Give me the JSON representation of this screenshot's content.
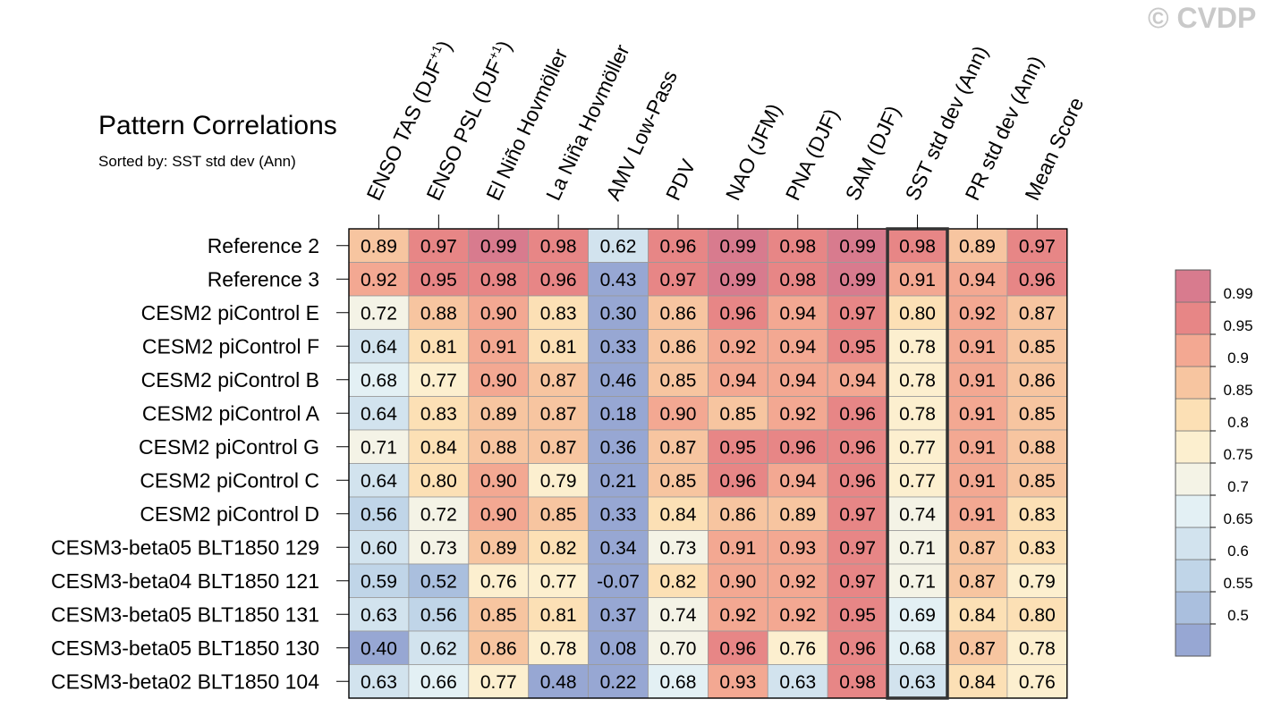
{
  "page": {
    "title": "Pattern Correlations",
    "subtitle": "Sorted by: SST std dev (Ann)",
    "watermark": "© CVDP"
  },
  "chart_data": {
    "type": "heatmap",
    "title": "Pattern Correlations",
    "subtitle": "Sorted by: SST std dev (Ann)",
    "columns": [
      {
        "label": "ENSO TAS (DJF",
        "sup": "+1",
        "close": ")"
      },
      {
        "label": "ENSO PSL (DJF",
        "sup": "+1",
        "close": ")"
      },
      {
        "label": "El Niño Hovmöller",
        "sup": "",
        "close": ""
      },
      {
        "label": "La Niña Hovmöller",
        "sup": "",
        "close": ""
      },
      {
        "label": "AMV Low-Pass",
        "sup": "",
        "close": ""
      },
      {
        "label": "PDV",
        "sup": "",
        "close": ""
      },
      {
        "label": "NAO (JFM)",
        "sup": "",
        "close": ""
      },
      {
        "label": "PNA (DJF)",
        "sup": "",
        "close": ""
      },
      {
        "label": "SAM (DJF)",
        "sup": "",
        "close": ""
      },
      {
        "label": "SST std dev (Ann)",
        "sup": "",
        "close": ""
      },
      {
        "label": "PR std dev (Ann)",
        "sup": "",
        "close": ""
      },
      {
        "label": "Mean Score",
        "sup": "",
        "close": ""
      }
    ],
    "highlight_column": 9,
    "rows": [
      {
        "label": "Reference 2",
        "values": [
          "0.89",
          "0.97",
          "0.99",
          "0.98",
          "0.62",
          "0.96",
          "0.99",
          "0.98",
          "0.99",
          "0.98",
          "0.89",
          "0.97"
        ]
      },
      {
        "label": "Reference 3",
        "values": [
          "0.92",
          "0.95",
          "0.98",
          "0.96",
          "0.43",
          "0.97",
          "0.99",
          "0.98",
          "0.99",
          "0.91",
          "0.94",
          "0.96"
        ]
      },
      {
        "label": "CESM2 piControl E",
        "values": [
          "0.72",
          "0.88",
          "0.90",
          "0.83",
          "0.30",
          "0.86",
          "0.96",
          "0.94",
          "0.97",
          "0.80",
          "0.92",
          "0.87"
        ]
      },
      {
        "label": "CESM2 piControl F",
        "values": [
          "0.64",
          "0.81",
          "0.91",
          "0.81",
          "0.33",
          "0.86",
          "0.92",
          "0.94",
          "0.95",
          "0.78",
          "0.91",
          "0.85"
        ]
      },
      {
        "label": "CESM2 piControl B",
        "values": [
          "0.68",
          "0.77",
          "0.90",
          "0.87",
          "0.46",
          "0.85",
          "0.94",
          "0.94",
          "0.94",
          "0.78",
          "0.91",
          "0.86"
        ]
      },
      {
        "label": "CESM2 piControl A",
        "values": [
          "0.64",
          "0.83",
          "0.89",
          "0.87",
          "0.18",
          "0.90",
          "0.85",
          "0.92",
          "0.96",
          "0.78",
          "0.91",
          "0.85"
        ]
      },
      {
        "label": "CESM2 piControl G",
        "values": [
          "0.71",
          "0.84",
          "0.88",
          "0.87",
          "0.36",
          "0.87",
          "0.95",
          "0.96",
          "0.96",
          "0.77",
          "0.91",
          "0.88"
        ]
      },
      {
        "label": "CESM2 piControl C",
        "values": [
          "0.64",
          "0.80",
          "0.90",
          "0.79",
          "0.21",
          "0.85",
          "0.96",
          "0.94",
          "0.96",
          "0.77",
          "0.91",
          "0.85"
        ]
      },
      {
        "label": "CESM2 piControl D",
        "values": [
          "0.56",
          "0.72",
          "0.90",
          "0.85",
          "0.33",
          "0.84",
          "0.86",
          "0.89",
          "0.97",
          "0.74",
          "0.91",
          "0.83"
        ]
      },
      {
        "label": "CESM3-beta05 BLT1850 129",
        "values": [
          "0.60",
          "0.73",
          "0.89",
          "0.82",
          "0.34",
          "0.73",
          "0.91",
          "0.93",
          "0.97",
          "0.71",
          "0.87",
          "0.83"
        ]
      },
      {
        "label": "CESM3-beta04 BLT1850 121",
        "values": [
          "0.59",
          "0.52",
          "0.76",
          "0.77",
          "-0.07",
          "0.82",
          "0.90",
          "0.92",
          "0.97",
          "0.71",
          "0.87",
          "0.79"
        ]
      },
      {
        "label": "CESM3-beta05 BLT1850 131",
        "values": [
          "0.63",
          "0.56",
          "0.85",
          "0.81",
          "0.37",
          "0.74",
          "0.92",
          "0.92",
          "0.95",
          "0.69",
          "0.84",
          "0.80"
        ]
      },
      {
        "label": "CESM3-beta05 BLT1850 130",
        "values": [
          "0.40",
          "0.62",
          "0.86",
          "0.78",
          "0.08",
          "0.70",
          "0.96",
          "0.76",
          "0.96",
          "0.68",
          "0.87",
          "0.78"
        ]
      },
      {
        "label": "CESM3-beta02 BLT1850 104",
        "values": [
          "0.63",
          "0.66",
          "0.77",
          "0.48",
          "0.22",
          "0.68",
          "0.93",
          "0.63",
          "0.98",
          "0.63",
          "0.84",
          "0.76"
        ]
      }
    ],
    "colorbar": {
      "levels": [
        0.5,
        0.55,
        0.6,
        0.65,
        0.7,
        0.75,
        0.8,
        0.85,
        0.9,
        0.95,
        0.99
      ],
      "labels": [
        "0.5",
        "0.55",
        "0.6",
        "0.65",
        "0.7",
        "0.75",
        "0.8",
        "0.85",
        "0.9",
        "0.95",
        "0.99"
      ],
      "colors": [
        "#97a7d3",
        "#aabfde",
        "#c0d5e8",
        "#d2e3ee",
        "#e3f0f4",
        "#f4f3e6",
        "#fcefcf",
        "#fce0b5",
        "#f7c5a0",
        "#f3a892",
        "#e78686",
        "#d87b8e"
      ]
    }
  }
}
